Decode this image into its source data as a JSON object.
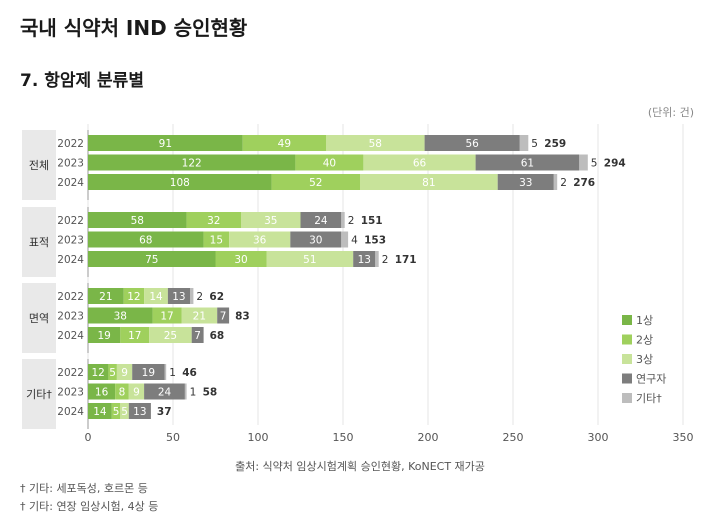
{
  "page_title": "국내 식약처 IND 승인현황",
  "section_title": "7. 항암제 분류별",
  "unit_note": "(단위: 건)",
  "source_note": "출처: 식약처 임상시험계획 승인현황, KoNECT 재가공",
  "footnotes": [
    "† 기타: 세포독성, 호르몬 등",
    "† 기타: 연장 임상시험, 4상 등"
  ],
  "chart_data": {
    "type": "bar",
    "orientation": "horizontal",
    "stacked": true,
    "xlim": [
      0,
      350
    ],
    "x_ticks": [
      0,
      50,
      100,
      150,
      200,
      250,
      300,
      350
    ],
    "colors": {
      "1상": "#7ab648",
      "2상": "#9fd05d",
      "3상": "#c8e39a",
      "연구자": "#7d7d7d",
      "기타": "#bdbdbd"
    },
    "series_names": [
      "1상",
      "2상",
      "3상",
      "연구자",
      "기타"
    ],
    "legend_labels": [
      "1상",
      "2상",
      "3상",
      "연구자",
      "기타†"
    ],
    "legend_position": "right",
    "groups": [
      {
        "name": "전체",
        "rows": [
          {
            "year": "2022",
            "values": [
              91,
              49,
              58,
              56,
              5
            ],
            "total": 259
          },
          {
            "year": "2023",
            "values": [
              122,
              40,
              66,
              61,
              5
            ],
            "total": 294
          },
          {
            "year": "2024",
            "values": [
              108,
              52,
              81,
              33,
              2
            ],
            "total": 276
          }
        ]
      },
      {
        "name": "표적",
        "rows": [
          {
            "year": "2022",
            "values": [
              58,
              32,
              35,
              24,
              2
            ],
            "total": 151
          },
          {
            "year": "2023",
            "values": [
              68,
              15,
              36,
              30,
              4
            ],
            "total": 153
          },
          {
            "year": "2024",
            "values": [
              75,
              30,
              51,
              13,
              2
            ],
            "total": 171
          }
        ]
      },
      {
        "name": "면역",
        "rows": [
          {
            "year": "2022",
            "values": [
              21,
              12,
              14,
              13,
              2
            ],
            "total": 62
          },
          {
            "year": "2023",
            "values": [
              38,
              17,
              21,
              7,
              0
            ],
            "total": 83
          },
          {
            "year": "2024",
            "values": [
              19,
              17,
              25,
              7,
              0
            ],
            "total": 68
          }
        ]
      },
      {
        "name": "기타†",
        "rows": [
          {
            "year": "2022",
            "values": [
              12,
              5,
              9,
              19,
              1
            ],
            "total": 46
          },
          {
            "year": "2023",
            "values": [
              16,
              8,
              9,
              24,
              1
            ],
            "total": 58
          },
          {
            "year": "2024",
            "values": [
              14,
              5,
              5,
              13,
              0
            ],
            "total": 37
          }
        ]
      }
    ]
  }
}
